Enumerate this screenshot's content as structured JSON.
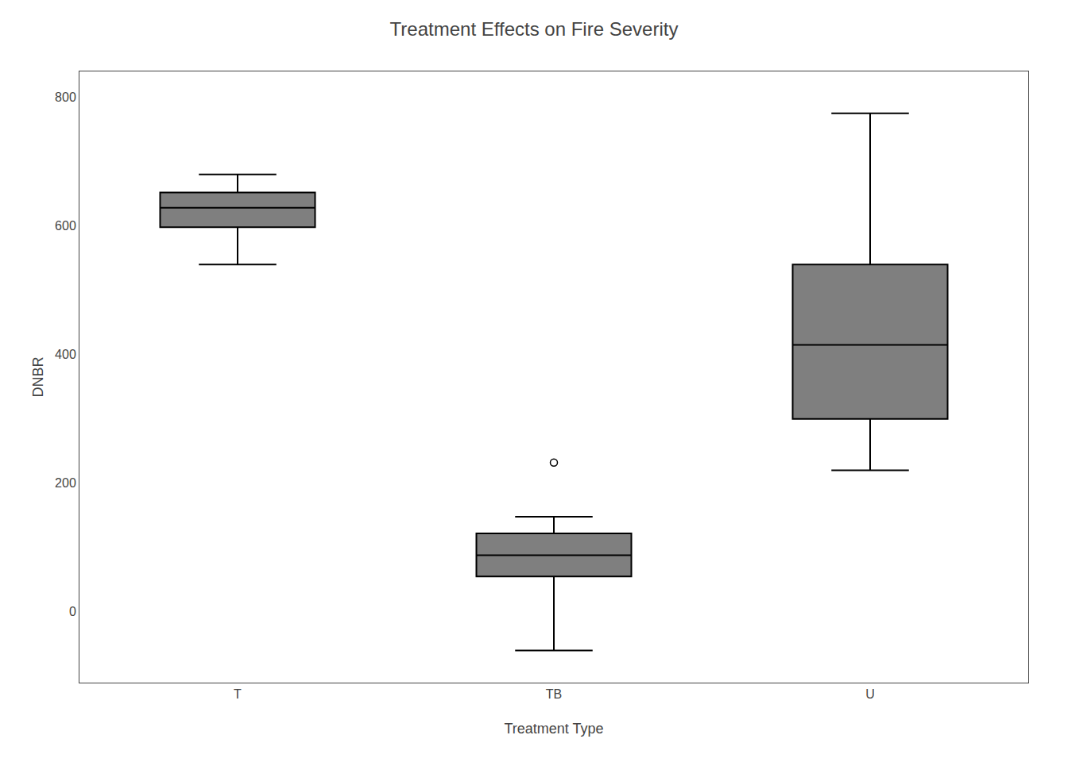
{
  "chart_data": {
    "type": "box",
    "title": "Treatment Effects on Fire Severity",
    "xlabel": "Treatment Type",
    "ylabel": "DNBR",
    "categories": [
      "T",
      "TB",
      "U"
    ],
    "whisker_low": [
      540,
      -60,
      220
    ],
    "q1": [
      598,
      55,
      300
    ],
    "median": [
      628,
      88,
      415
    ],
    "q3": [
      652,
      122,
      540
    ],
    "whisker_high": [
      680,
      148,
      775
    ],
    "outliers": [
      [],
      [
        232
      ],
      []
    ],
    "color": "#000000",
    "marker": "circle-open",
    "ylim": [
      -110,
      840
    ],
    "yticks": [
      0,
      200,
      400,
      600,
      800
    ],
    "grid": false
  }
}
